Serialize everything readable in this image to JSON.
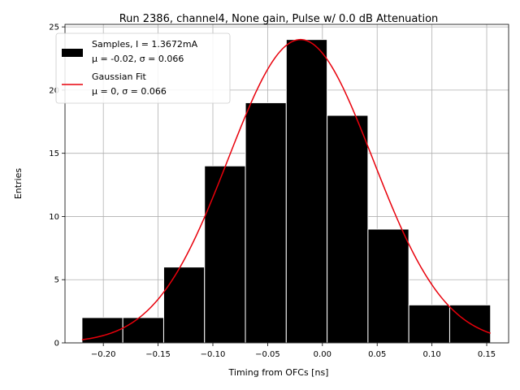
{
  "chart_data": {
    "type": "bar",
    "title": "Run 2386, channel4, None gain, Pulse w/ 0.0 dB Attenuation",
    "xlabel": "Timing from OFCs [ns]",
    "ylabel": "Entries",
    "xlim": [
      -0.235,
      0.17
    ],
    "ylim": [
      0,
      25.2
    ],
    "xticks": [
      -0.2,
      -0.15,
      -0.1,
      -0.05,
      0.0,
      0.05,
      0.1,
      0.15
    ],
    "xtick_labels": [
      "−0.20",
      "−0.15",
      "−0.10",
      "−0.05",
      "0.00",
      "0.05",
      "0.10",
      "0.15"
    ],
    "yticks": [
      0,
      5,
      10,
      15,
      20,
      25
    ],
    "ytick_labels": [
      "0",
      "5",
      "10",
      "15",
      "20",
      "25"
    ],
    "grid": true,
    "legend_position": "top-left",
    "bins": {
      "edges": [
        -0.2195,
        -0.1822,
        -0.1449,
        -0.1076,
        -0.0703,
        -0.033,
        0.0043,
        0.0416,
        0.0789,
        0.1162,
        0.1535
      ],
      "counts": [
        2,
        2,
        6,
        14,
        19,
        24,
        18,
        9,
        3,
        3
      ],
      "color": "#000000",
      "edgecolor": "#ffffff"
    },
    "fit": {
      "mu": -0.02,
      "sigma": 0.066,
      "amplitude": 24,
      "x_range": [
        -0.2195,
        0.1535
      ],
      "color": "#e8000b"
    },
    "legend": [
      {
        "label_line1": "Samples, I = 1.3672mA",
        "label_line2": "μ = -0.02, σ = 0.066",
        "kind": "patch"
      },
      {
        "label_line1": "Gaussian Fit",
        "label_line2": "μ = 0, σ = 0.066",
        "kind": "line"
      }
    ]
  }
}
